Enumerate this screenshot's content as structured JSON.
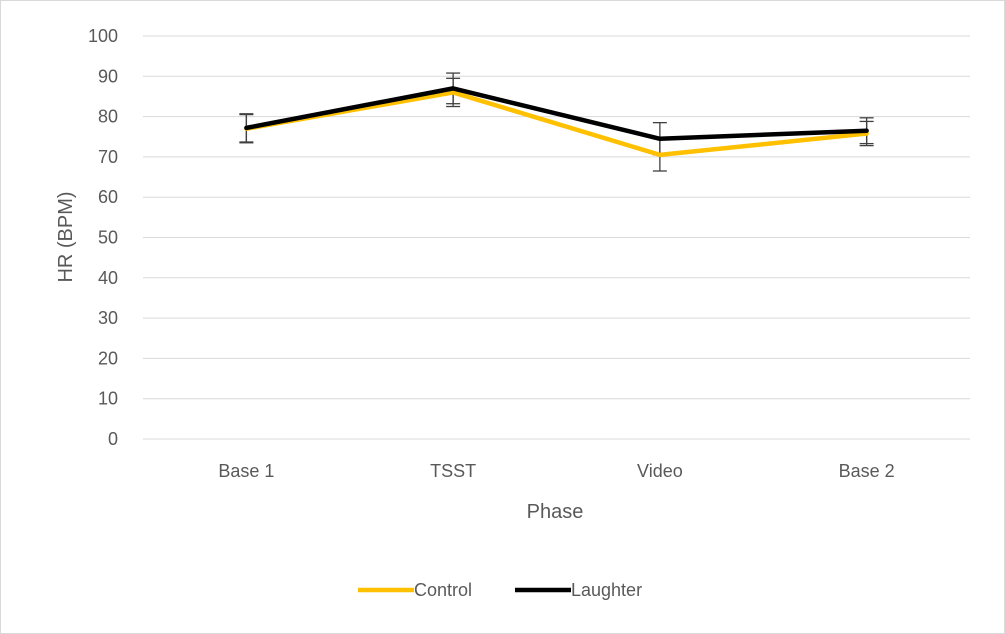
{
  "chart_data": {
    "type": "line",
    "categories": [
      "Base 1",
      "TSST",
      "Video",
      "Base 2"
    ],
    "series": [
      {
        "name": "Control",
        "color": "#FFC000",
        "values": [
          77.0,
          86.0,
          70.5,
          75.8
        ],
        "error": [
          3.5,
          3.5,
          4.0,
          3.0
        ]
      },
      {
        "name": "Laughter",
        "color": "#000000",
        "values": [
          77.2,
          87.0,
          74.5,
          76.5
        ],
        "error": [
          3.5,
          3.8,
          4.0,
          3.2
        ]
      }
    ],
    "xlabel": "Phase",
    "ylabel": "HR (BPM)",
    "ylim": [
      0,
      100
    ],
    "yticks": [
      0,
      10,
      20,
      30,
      40,
      50,
      60,
      70,
      80,
      90,
      100
    ],
    "grid": true,
    "legend_position": "bottom"
  }
}
